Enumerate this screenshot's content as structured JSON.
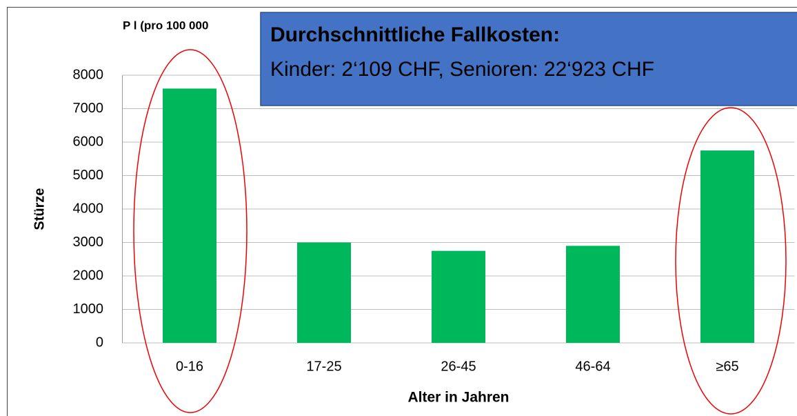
{
  "chart_data": {
    "type": "bar",
    "title": "P l (pro 100 000",
    "annotation": {
      "heading": "Durchschnittliche Fallkosten:",
      "text": "Kinder: 2‘109 CHF, Senioren: 22‘923 CHF"
    },
    "xlabel": "Alter in Jahren",
    "ylabel": "Stürze",
    "categories": [
      "0-16",
      "17-25",
      "26-45",
      "46-64",
      "≥65"
    ],
    "values": [
      7600,
      3000,
      2750,
      2900,
      5750
    ],
    "color": "#00b85c",
    "ylim": [
      0,
      8000
    ],
    "yticks": [
      0,
      1000,
      2000,
      3000,
      4000,
      5000,
      6000,
      7000,
      8000
    ],
    "grid": true
  }
}
